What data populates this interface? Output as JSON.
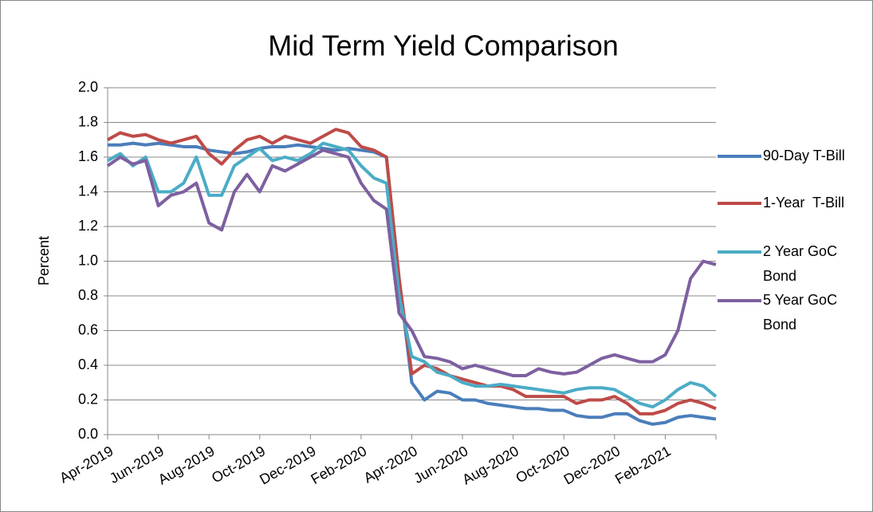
{
  "chart_data": {
    "type": "line",
    "title": "Mid Term Yield Comparison",
    "y_label": "Percent",
    "x": [
      "Apr-2019",
      null,
      null,
      null,
      "Jun-2019",
      null,
      null,
      null,
      "Aug-2019",
      null,
      null,
      null,
      "Oct-2019",
      null,
      null,
      null,
      "Dec-2019",
      null,
      null,
      null,
      "Feb-2020",
      null,
      null,
      null,
      "Apr-2020",
      null,
      null,
      null,
      "Jun-2020",
      null,
      null,
      null,
      "Aug-2020",
      null,
      null,
      null,
      "Oct-2020",
      null,
      null,
      null,
      "Dec-2020",
      null,
      null,
      null,
      "Feb-2021",
      null,
      null,
      null,
      null
    ],
    "series": [
      {
        "name": "90-Day T-Bill",
        "color": "#4a7ebb",
        "values": [
          1.67,
          1.67,
          1.68,
          1.67,
          1.68,
          1.67,
          1.66,
          1.66,
          1.64,
          1.63,
          1.62,
          1.63,
          1.65,
          1.66,
          1.66,
          1.67,
          1.66,
          1.65,
          1.64,
          1.65,
          1.64,
          1.63,
          1.6,
          0.9,
          0.3,
          0.2,
          0.25,
          0.24,
          0.2,
          0.2,
          0.18,
          0.17,
          0.16,
          0.15,
          0.15,
          0.14,
          0.14,
          0.11,
          0.1,
          0.1,
          0.12,
          0.12,
          0.08,
          0.06,
          0.07,
          0.1,
          0.11,
          0.1,
          0.09
        ]
      },
      {
        "name": "1-Year  T-Bill",
        "color": "#be4b48",
        "values": [
          1.7,
          1.74,
          1.72,
          1.73,
          1.7,
          1.68,
          1.7,
          1.72,
          1.62,
          1.56,
          1.64,
          1.7,
          1.72,
          1.68,
          1.72,
          1.7,
          1.68,
          1.72,
          1.76,
          1.74,
          1.66,
          1.64,
          1.6,
          0.9,
          0.35,
          0.4,
          0.38,
          0.34,
          0.32,
          0.3,
          0.28,
          0.28,
          0.26,
          0.22,
          0.22,
          0.22,
          0.22,
          0.18,
          0.2,
          0.2,
          0.22,
          0.18,
          0.12,
          0.12,
          0.14,
          0.18,
          0.2,
          0.18,
          0.15
        ]
      },
      {
        "name": "2 Year GoC Bond",
        "color": "#4bacc6",
        "values": [
          1.58,
          1.62,
          1.55,
          1.6,
          1.4,
          1.4,
          1.45,
          1.6,
          1.38,
          1.38,
          1.55,
          1.6,
          1.65,
          1.58,
          1.6,
          1.58,
          1.62,
          1.68,
          1.66,
          1.64,
          1.55,
          1.48,
          1.45,
          0.8,
          0.45,
          0.42,
          0.36,
          0.34,
          0.3,
          0.28,
          0.28,
          0.29,
          0.28,
          0.27,
          0.26,
          0.25,
          0.24,
          0.26,
          0.27,
          0.27,
          0.26,
          0.22,
          0.18,
          0.16,
          0.2,
          0.26,
          0.3,
          0.28,
          0.22
        ]
      },
      {
        "name": "5 Year GoC Bond",
        "color": "#7d60a0",
        "values": [
          1.55,
          1.6,
          1.56,
          1.58,
          1.32,
          1.38,
          1.4,
          1.45,
          1.22,
          1.18,
          1.4,
          1.5,
          1.4,
          1.55,
          1.52,
          1.56,
          1.6,
          1.64,
          1.62,
          1.6,
          1.45,
          1.35,
          1.3,
          0.7,
          0.6,
          0.45,
          0.44,
          0.42,
          0.38,
          0.4,
          0.38,
          0.36,
          0.34,
          0.34,
          0.38,
          0.36,
          0.35,
          0.36,
          0.4,
          0.44,
          0.46,
          0.44,
          0.42,
          0.42,
          0.46,
          0.6,
          0.9,
          1.0,
          0.98
        ]
      }
    ],
    "ylim": [
      0,
      2
    ],
    "yticks": [
      {
        "value": 0,
        "label": "0.0"
      },
      {
        "value": 0.2,
        "label": "0.2"
      },
      {
        "value": 0.4,
        "label": "0.4"
      },
      {
        "value": 0.6,
        "label": "0.6"
      },
      {
        "value": 0.8,
        "label": "0.8"
      },
      {
        "value": 1,
        "label": "1.0"
      },
      {
        "value": 1.2,
        "label": "1.2"
      },
      {
        "value": 1.4,
        "label": "1.4"
      },
      {
        "value": 1.6,
        "label": "1.6"
      },
      {
        "value": 1.8,
        "label": "1.8"
      },
      {
        "value": 2,
        "label": "2.0"
      }
    ],
    "grid": true,
    "legend": "right"
  }
}
